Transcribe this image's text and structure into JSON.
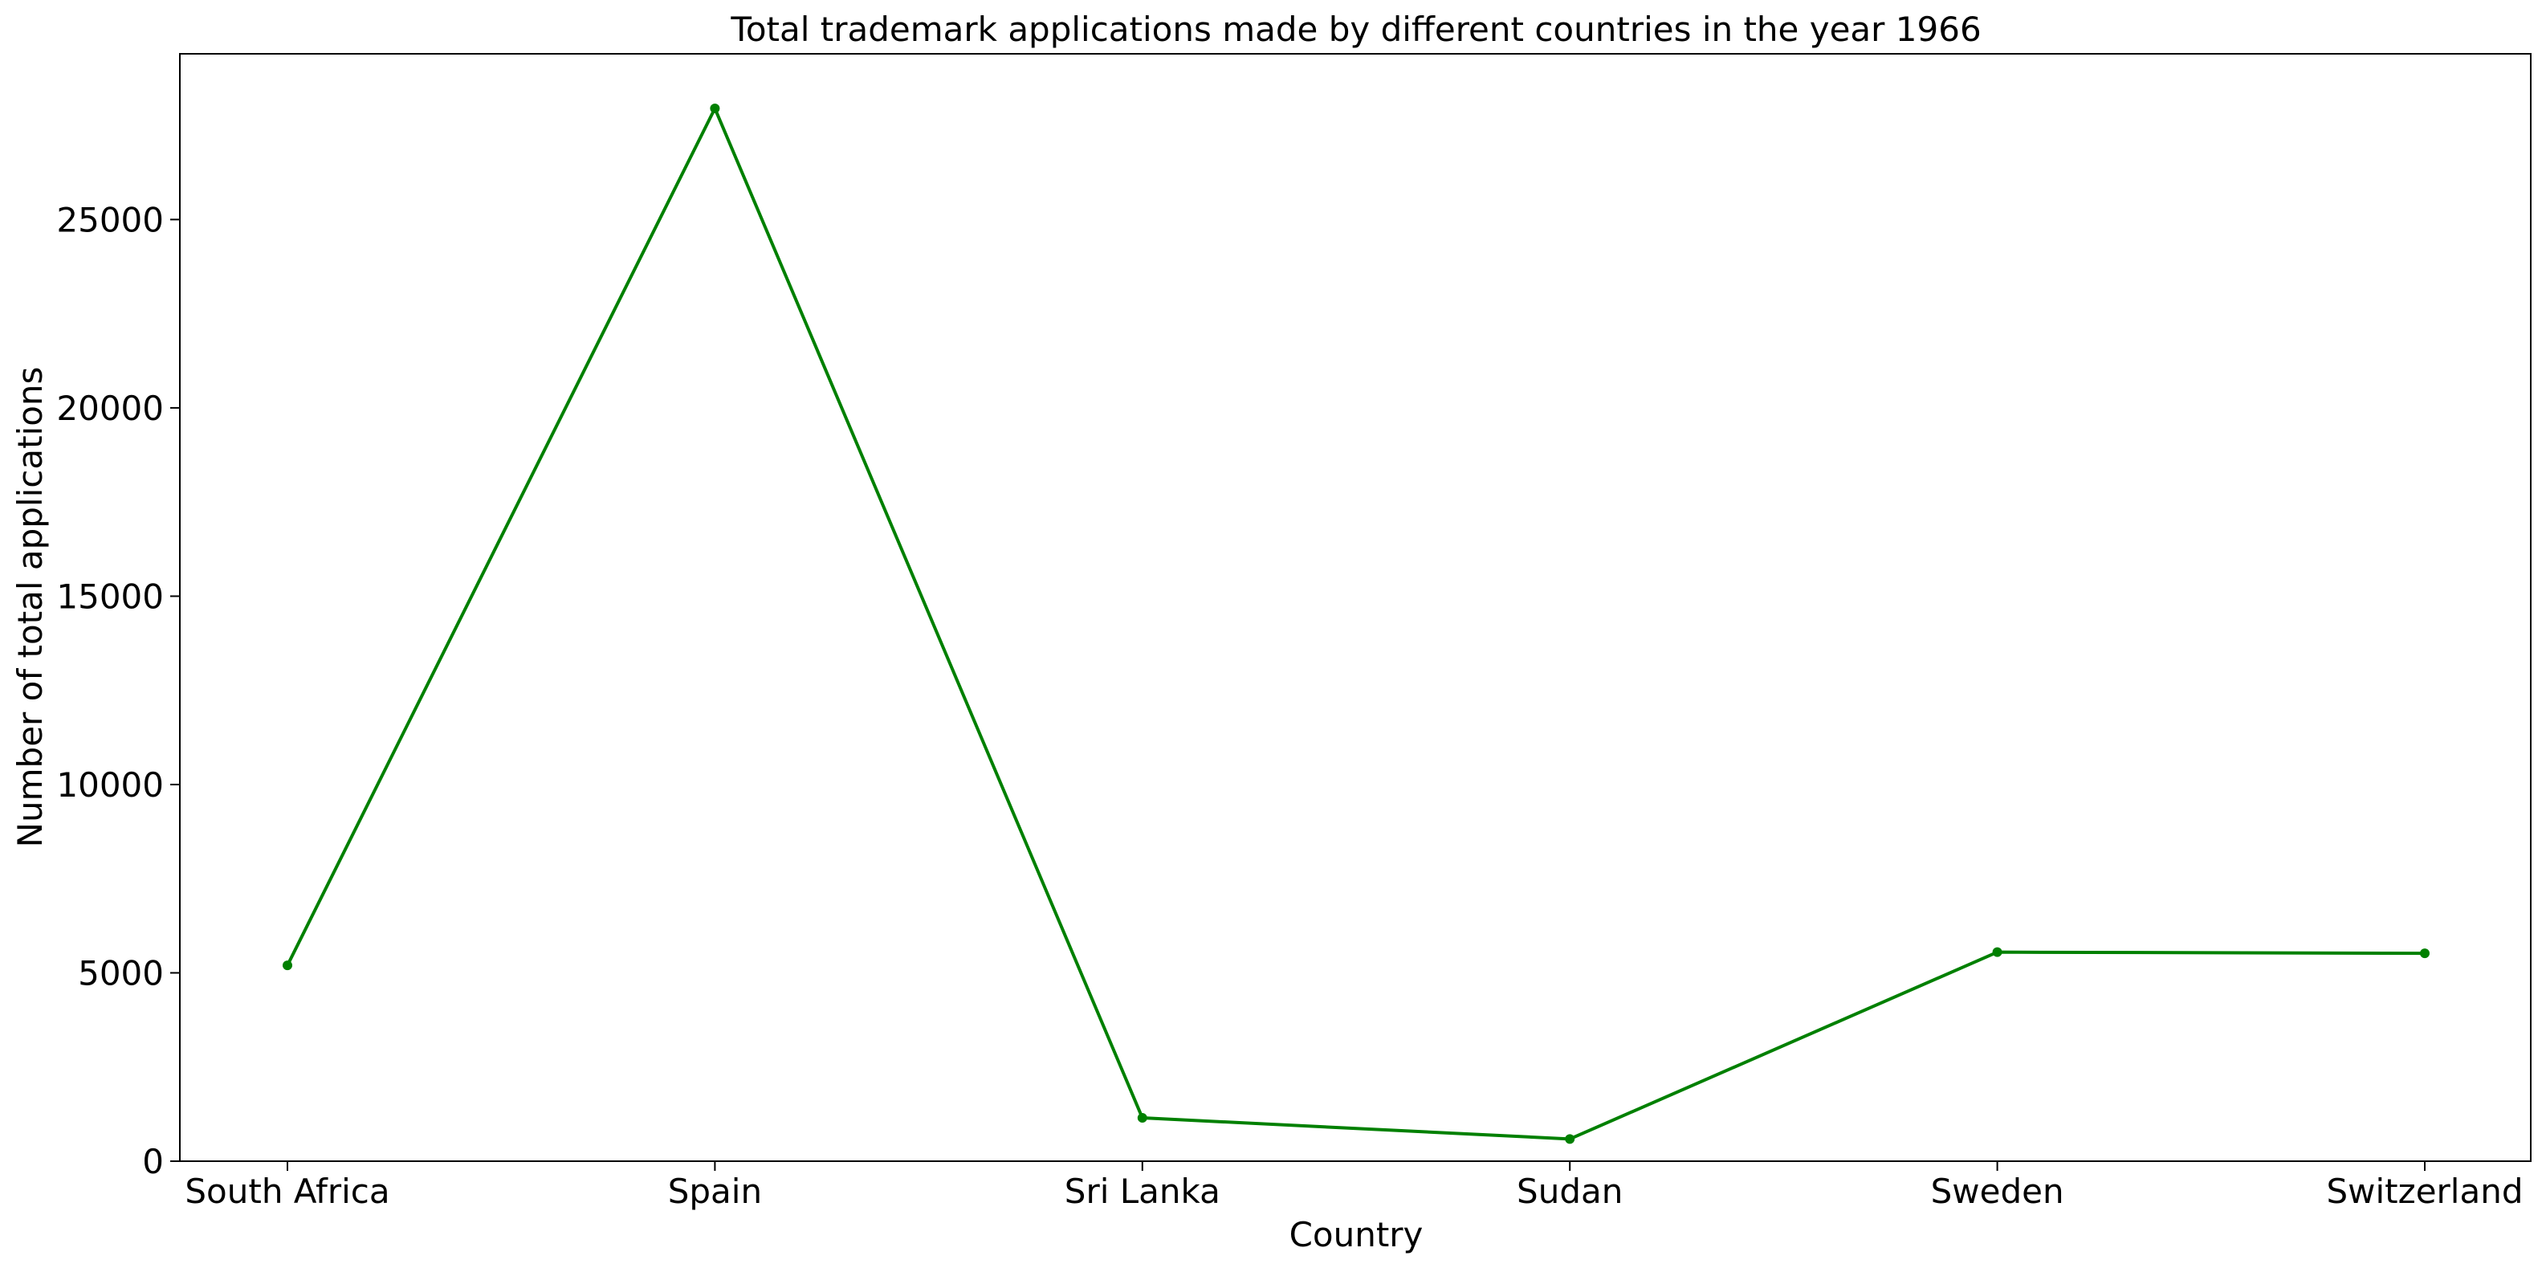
{
  "chart_data": {
    "type": "line",
    "title": "Total trademark applications made by different countries in the year 1966",
    "xlabel": "Country",
    "ylabel": "Number of total applications",
    "categories": [
      "South Africa",
      "Spain",
      "Sri Lanka",
      "Sudan",
      "Sweden",
      "Switzerland"
    ],
    "series": [
      {
        "values": [
          5200,
          27950,
          1150,
          590,
          5550,
          5520
        ]
      }
    ],
    "ylim": [
      0,
      29400
    ],
    "yticks": [
      0,
      5000,
      10000,
      15000,
      20000,
      25000
    ],
    "grid": false,
    "colors": {
      "line": "#008000",
      "axis": "#000000"
    }
  }
}
